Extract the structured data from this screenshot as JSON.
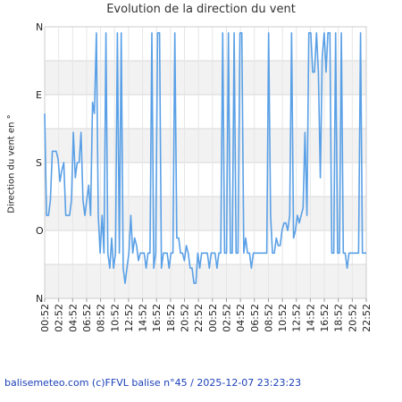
{
  "chart_data": {
    "type": "line",
    "title": "Evolution de la direction du vent",
    "xlabel": "",
    "ylabel": "Direction du vent en °",
    "ylim": [
      0,
      360
    ],
    "y_ticks": [
      {
        "value": 360,
        "label": "N"
      },
      {
        "value": 270,
        "label": "O"
      },
      {
        "value": 180,
        "label": "S"
      },
      {
        "value": 90,
        "label": "E"
      },
      {
        "value": 0,
        "label": "N"
      }
    ],
    "x_tick_labels": [
      "00:52",
      "02:52",
      "04:52",
      "06:52",
      "08:52",
      "10:52",
      "12:52",
      "14:52",
      "16:52",
      "18:52",
      "20:52",
      "22:52",
      "00:52",
      "02:52",
      "04:52",
      "06:52",
      "08:52",
      "10:52",
      "12:52",
      "14:52",
      "16:52",
      "18:52",
      "20:52",
      "22:52"
    ],
    "series": [
      {
        "color": "#5aa0e6",
        "values": [
          115,
          250,
          250,
          230,
          165,
          165,
          165,
          175,
          205,
          190,
          180,
          250,
          250,
          250,
          230,
          140,
          200,
          180,
          180,
          140,
          230,
          250,
          230,
          210,
          250,
          100,
          115,
          8,
          250,
          300,
          250,
          300,
          8,
          300,
          320,
          280,
          320,
          300,
          8,
          300,
          8,
          320,
          340,
          320,
          300,
          250,
          300,
          280,
          290,
          310,
          300,
          300,
          300,
          320,
          300,
          300,
          8,
          320,
          300,
          8,
          8,
          320,
          300,
          300,
          300,
          320,
          300,
          300,
          8,
          280,
          280,
          300,
          300,
          310,
          290,
          300,
          320,
          320,
          340,
          340,
          300,
          320,
          300,
          300,
          300,
          300,
          320,
          300,
          300,
          300,
          320,
          300,
          300,
          8,
          300,
          300,
          8,
          300,
          300,
          8,
          300,
          300,
          8,
          8,
          300,
          280,
          300,
          300,
          320,
          300,
          300,
          300,
          300,
          300,
          300,
          300,
          300,
          8,
          250,
          300,
          300,
          280,
          290,
          290,
          270,
          260,
          260,
          270,
          250,
          8,
          280,
          270,
          250,
          260,
          250,
          240,
          140,
          250,
          8,
          8,
          60,
          60,
          8,
          60,
          200,
          40,
          8,
          60,
          8,
          8,
          300,
          300,
          8,
          300,
          300,
          8,
          300,
          300,
          320,
          300,
          300,
          300,
          300,
          300,
          300,
          8,
          300,
          300,
          300
        ]
      }
    ]
  },
  "footer": "balisemeteo.com (c)FFVL balise n°45 / 2025-12-07 23:23:23"
}
